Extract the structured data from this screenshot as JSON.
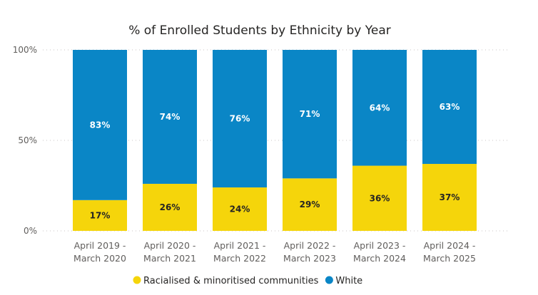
{
  "chart_data": {
    "type": "bar",
    "stacked": true,
    "title": "% of Enrolled Students by Ethnicity by Year",
    "categories": [
      [
        "April 2019 -",
        "March 2020"
      ],
      [
        "April 2020 -",
        "March 2021"
      ],
      [
        "April 2021 -",
        "March 2022"
      ],
      [
        "April 2022 -",
        "March 2023"
      ],
      [
        "April 2023 -",
        "March 2024"
      ],
      [
        "April 2024 -",
        "March 2025"
      ]
    ],
    "series": [
      {
        "name": "Racialised & minoritised communities",
        "color": "#F5D50B",
        "values": [
          17,
          26,
          24,
          29,
          36,
          37
        ],
        "labels": [
          "17%",
          "26%",
          "24%",
          "29%",
          "36%",
          "37%"
        ]
      },
      {
        "name": "White",
        "color": "#0A86C6",
        "values": [
          83,
          74,
          76,
          71,
          64,
          63
        ],
        "labels": [
          "83%",
          "74%",
          "76%",
          "71%",
          "64%",
          "63%"
        ]
      }
    ],
    "yticks": [
      {
        "value": 0,
        "label": "0%"
      },
      {
        "value": 50,
        "label": "50%"
      },
      {
        "value": 100,
        "label": "100%"
      }
    ],
    "ylim": [
      0,
      100
    ],
    "grid": true,
    "legend_position": "bottom"
  }
}
